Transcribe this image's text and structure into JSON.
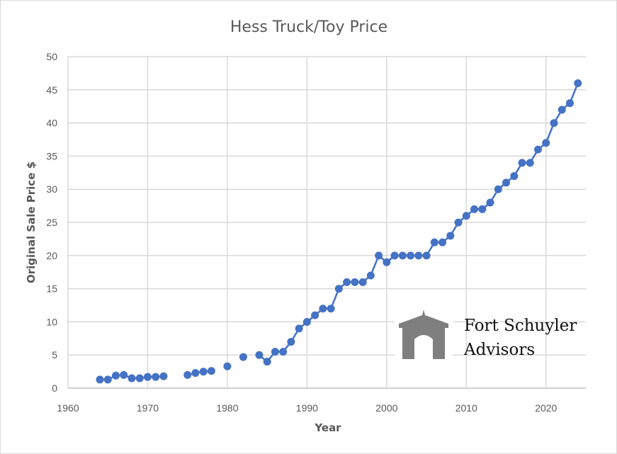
{
  "chart_data": {
    "type": "line",
    "title": "Hess Truck/Toy Price",
    "xlabel": "Year",
    "ylabel": "Original Sale Price $",
    "xlim": [
      1960,
      2025
    ],
    "ylim": [
      0,
      50
    ],
    "x_ticks": [
      1960,
      1970,
      1980,
      1990,
      2000,
      2010,
      2020
    ],
    "y_ticks": [
      0,
      5,
      10,
      15,
      20,
      25,
      30,
      35,
      40,
      45,
      50
    ],
    "grid": true,
    "color": "#4472C4",
    "series": [
      {
        "name": "Price",
        "x": [
          1964,
          1965,
          1966,
          1967,
          1968,
          1969,
          1970,
          1971,
          1972,
          1975,
          1976,
          1977,
          1978,
          1980,
          1982,
          1984,
          1985,
          1986,
          1987,
          1988,
          1989,
          1990,
          1991,
          1992,
          1993,
          1994,
          1995,
          1996,
          1997,
          1998,
          1999,
          2000,
          2001,
          2002,
          2003,
          2004,
          2005,
          2006,
          2007,
          2008,
          2009,
          2010,
          2011,
          2012,
          2013,
          2014,
          2015,
          2016,
          2017,
          2018,
          2019,
          2020,
          2021,
          2022,
          2023,
          2024
        ],
        "values": [
          1.29,
          1.29,
          1.89,
          1.99,
          1.49,
          1.49,
          1.69,
          1.69,
          1.79,
          1.99,
          2.29,
          2.49,
          2.59,
          3.29,
          4.69,
          4.99,
          3.99,
          5.49,
          5.49,
          6.99,
          8.99,
          9.99,
          10.99,
          11.99,
          11.99,
          14.99,
          15.99,
          15.99,
          15.99,
          16.99,
          19.99,
          18.99,
          19.99,
          19.99,
          19.99,
          19.99,
          19.99,
          21.99,
          21.99,
          22.99,
          24.99,
          25.99,
          26.99,
          26.99,
          27.99,
          29.99,
          30.99,
          31.99,
          33.99,
          33.99,
          35.99,
          36.99,
          39.99,
          41.99,
          42.99,
          45.99
        ]
      }
    ]
  },
  "logo": {
    "line1": "Fort Schuyler",
    "line2": "Advisors"
  }
}
